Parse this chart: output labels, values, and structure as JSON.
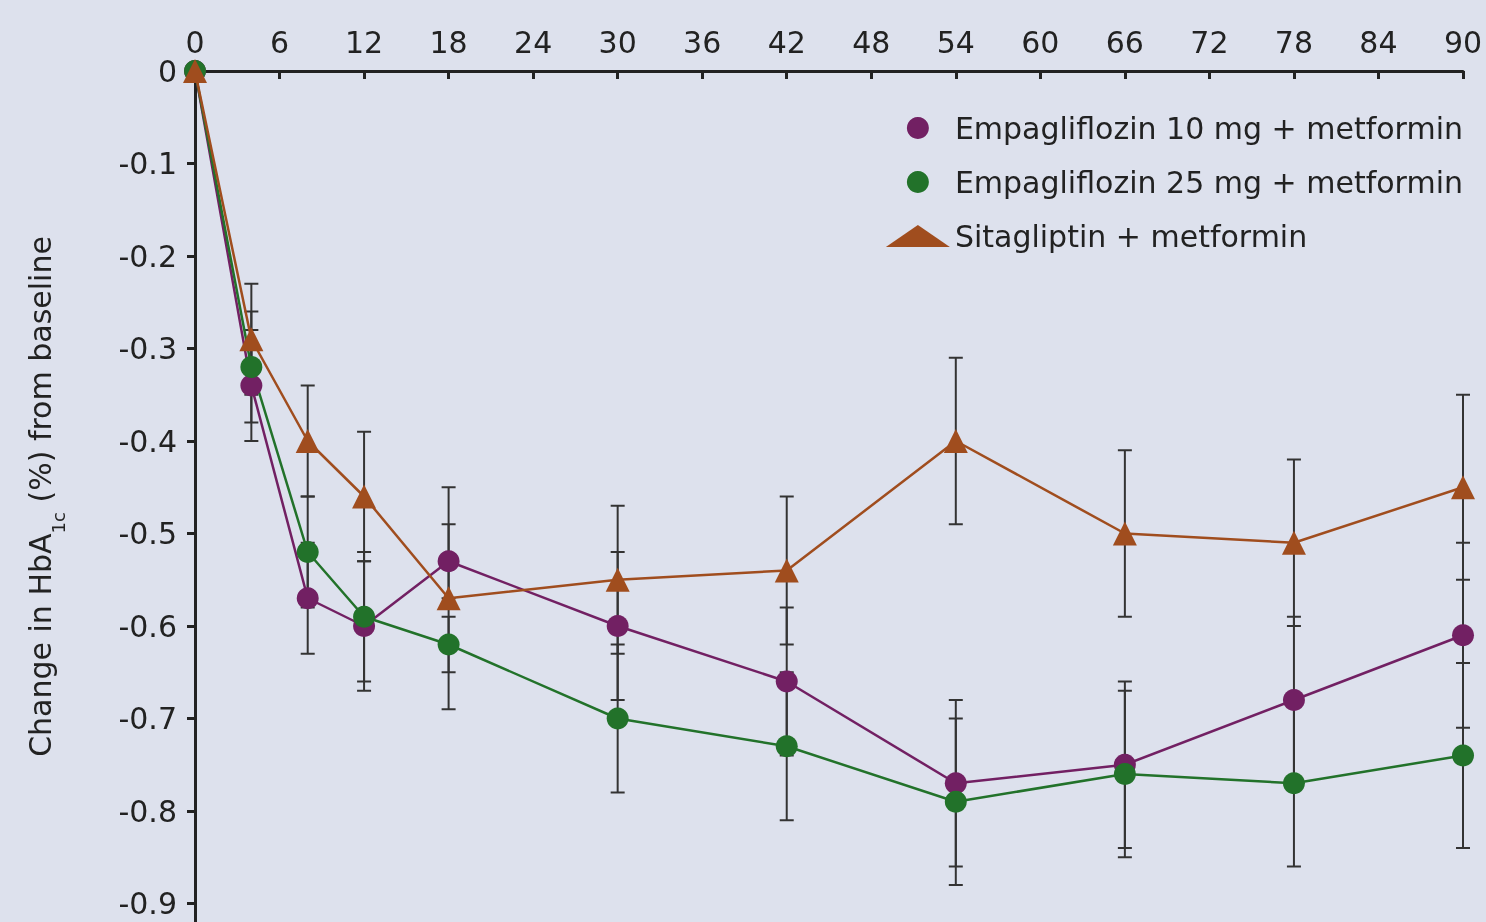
{
  "chart_data": {
    "type": "line",
    "ylabel": "Change in HbA$_{1c}$ (%) from baseline",
    "x": [
      0,
      4,
      8,
      12,
      18,
      30,
      42,
      54,
      66,
      78,
      90
    ],
    "xlim": [
      0,
      90
    ],
    "xticks": [
      0,
      6,
      12,
      18,
      24,
      30,
      36,
      42,
      48,
      54,
      60,
      66,
      72,
      78,
      84,
      90
    ],
    "ylim": [
      -0.92,
      0
    ],
    "yticks": [
      0,
      -0.1,
      -0.2,
      -0.3,
      -0.4,
      -0.5,
      -0.6,
      -0.7,
      -0.8,
      -0.9
    ],
    "grid": false,
    "legend": "top right",
    "line_style": "solid",
    "series": [
      {
        "name": "Empagliflozin 10 mg + metformin",
        "color": "#722063",
        "marker": "circle",
        "values": [
          0,
          -0.34,
          -0.57,
          -0.6,
          -0.53,
          -0.6,
          -0.66,
          -0.77,
          -0.75,
          -0.68,
          -0.61
        ],
        "errors": [
          null,
          0.06,
          0.06,
          0.07,
          0.04,
          0.08,
          0.08,
          0.09,
          0.09,
          0.09,
          0.1
        ]
      },
      {
        "name": "Empagliflozin 25 mg + metformin",
        "color": "#22722a",
        "marker": "circle",
        "values": [
          0,
          -0.32,
          -0.52,
          -0.59,
          -0.62,
          -0.7,
          -0.73,
          -0.79,
          -0.76,
          -0.77,
          -0.74
        ],
        "errors": [
          null,
          0.06,
          0.06,
          0.07,
          0.03,
          0.08,
          0.08,
          0.09,
          0.09,
          0.09,
          0.1
        ]
      },
      {
        "name": "Sitagliptin + metformin",
        "color": "#a04d1e",
        "marker": "triangle",
        "values": [
          0,
          -0.29,
          -0.4,
          -0.46,
          -0.57,
          -0.55,
          -0.54,
          -0.4,
          -0.5,
          -0.51,
          -0.45
        ],
        "errors": [
          null,
          0.06,
          0.06,
          0.07,
          0.12,
          0.08,
          0.08,
          0.09,
          0.09,
          0.09,
          0.1
        ]
      }
    ]
  }
}
